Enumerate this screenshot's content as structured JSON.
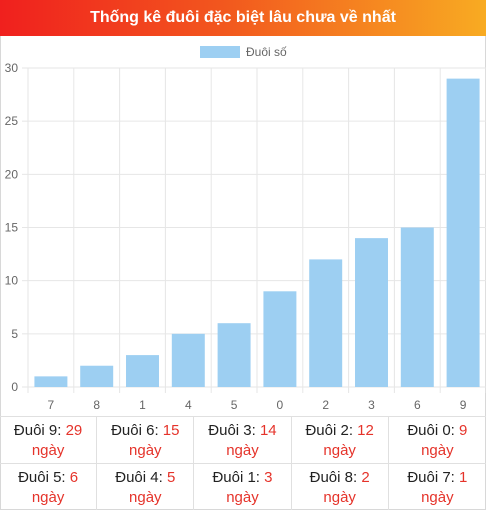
{
  "header": {
    "title": "Thống kê đuôi đặc biệt lâu chưa về nhất"
  },
  "colors": {
    "bar": "#9dcff2",
    "header_start": "#f0201e",
    "header_end": "#f8ab22",
    "value": "#e5332a"
  },
  "chart_data": {
    "type": "bar",
    "categories": [
      "7",
      "8",
      "1",
      "4",
      "5",
      "0",
      "2",
      "3",
      "6",
      "9"
    ],
    "series": [
      {
        "name": "Đuôi số",
        "values": [
          1,
          2,
          3,
          5,
          6,
          9,
          12,
          14,
          15,
          29
        ]
      }
    ],
    "ylim": [
      0,
      30
    ],
    "yticks": [
      0,
      5,
      10,
      15,
      20,
      25,
      30
    ],
    "grid": true,
    "legend": "top-center"
  },
  "stats": {
    "unit": "ngày",
    "rows": [
      [
        {
          "label": "Đuôi 9:",
          "value": "29"
        },
        {
          "label": "Đuôi 6:",
          "value": "15"
        },
        {
          "label": "Đuôi 3:",
          "value": "14"
        },
        {
          "label": "Đuôi 2:",
          "value": "12"
        },
        {
          "label": "Đuôi 0:",
          "value": "9"
        }
      ],
      [
        {
          "label": "Đuôi 5:",
          "value": "6"
        },
        {
          "label": "Đuôi 4:",
          "value": "5"
        },
        {
          "label": "Đuôi 1:",
          "value": "3"
        },
        {
          "label": "Đuôi 8:",
          "value": "2"
        },
        {
          "label": "Đuôi 7:",
          "value": "1"
        }
      ]
    ]
  }
}
